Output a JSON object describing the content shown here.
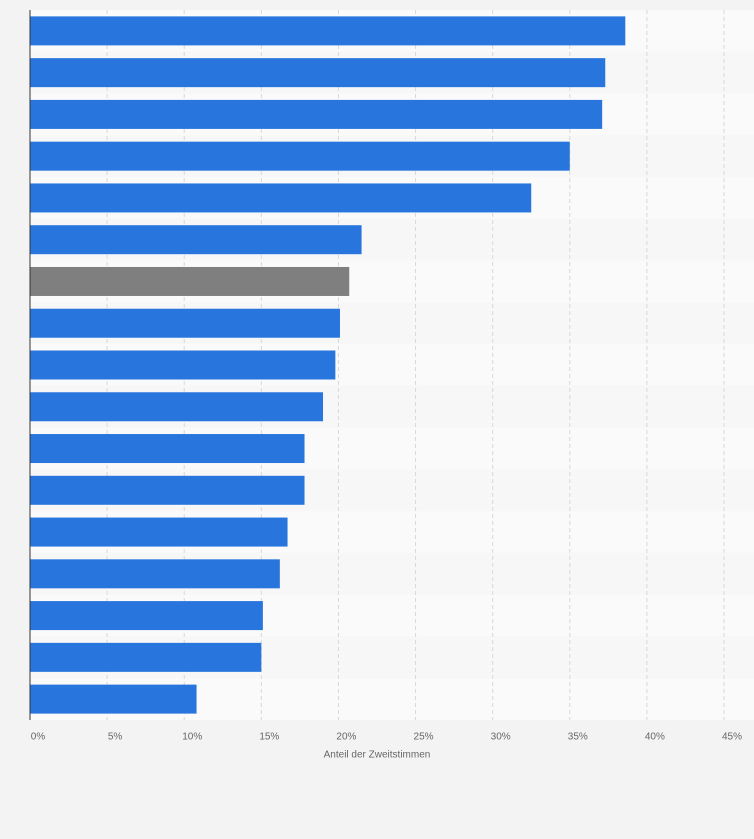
{
  "chart_data": {
    "type": "hbar",
    "categories": [
      null,
      null,
      null,
      null,
      null,
      null,
      null,
      null,
      null,
      null,
      null,
      null,
      null,
      null,
      null,
      null,
      null
    ],
    "values": [
      38.6,
      37.3,
      37.1,
      35.0,
      32.5,
      21.5,
      20.7,
      20.1,
      19.8,
      19.0,
      17.8,
      17.8,
      16.7,
      16.2,
      15.1,
      15.0,
      10.8
    ],
    "colors": [
      "#2876dd",
      "#2876dd",
      "#2876dd",
      "#2876dd",
      "#2876dd",
      "#2876dd",
      "#7f7f7f",
      "#2876dd",
      "#2876dd",
      "#2876dd",
      "#2876dd",
      "#2876dd",
      "#2876dd",
      "#2876dd",
      "#2876dd",
      "#2876dd",
      "#2876dd"
    ],
    "xlabel": "Anteil der Zweitstimmen",
    "xlim": [
      0,
      45
    ],
    "xticks": [
      {
        "value": 0,
        "label": "0%"
      },
      {
        "value": 5,
        "label": "5%"
      },
      {
        "value": 10,
        "label": "10%"
      },
      {
        "value": 15,
        "label": "15%"
      },
      {
        "value": 20,
        "label": "20%"
      },
      {
        "value": 25,
        "label": "25%"
      },
      {
        "value": 30,
        "label": "30%"
      },
      {
        "value": 35,
        "label": "35%"
      },
      {
        "value": 40,
        "label": "40%"
      },
      {
        "value": 45,
        "label": "45%"
      }
    ],
    "grid": true
  }
}
